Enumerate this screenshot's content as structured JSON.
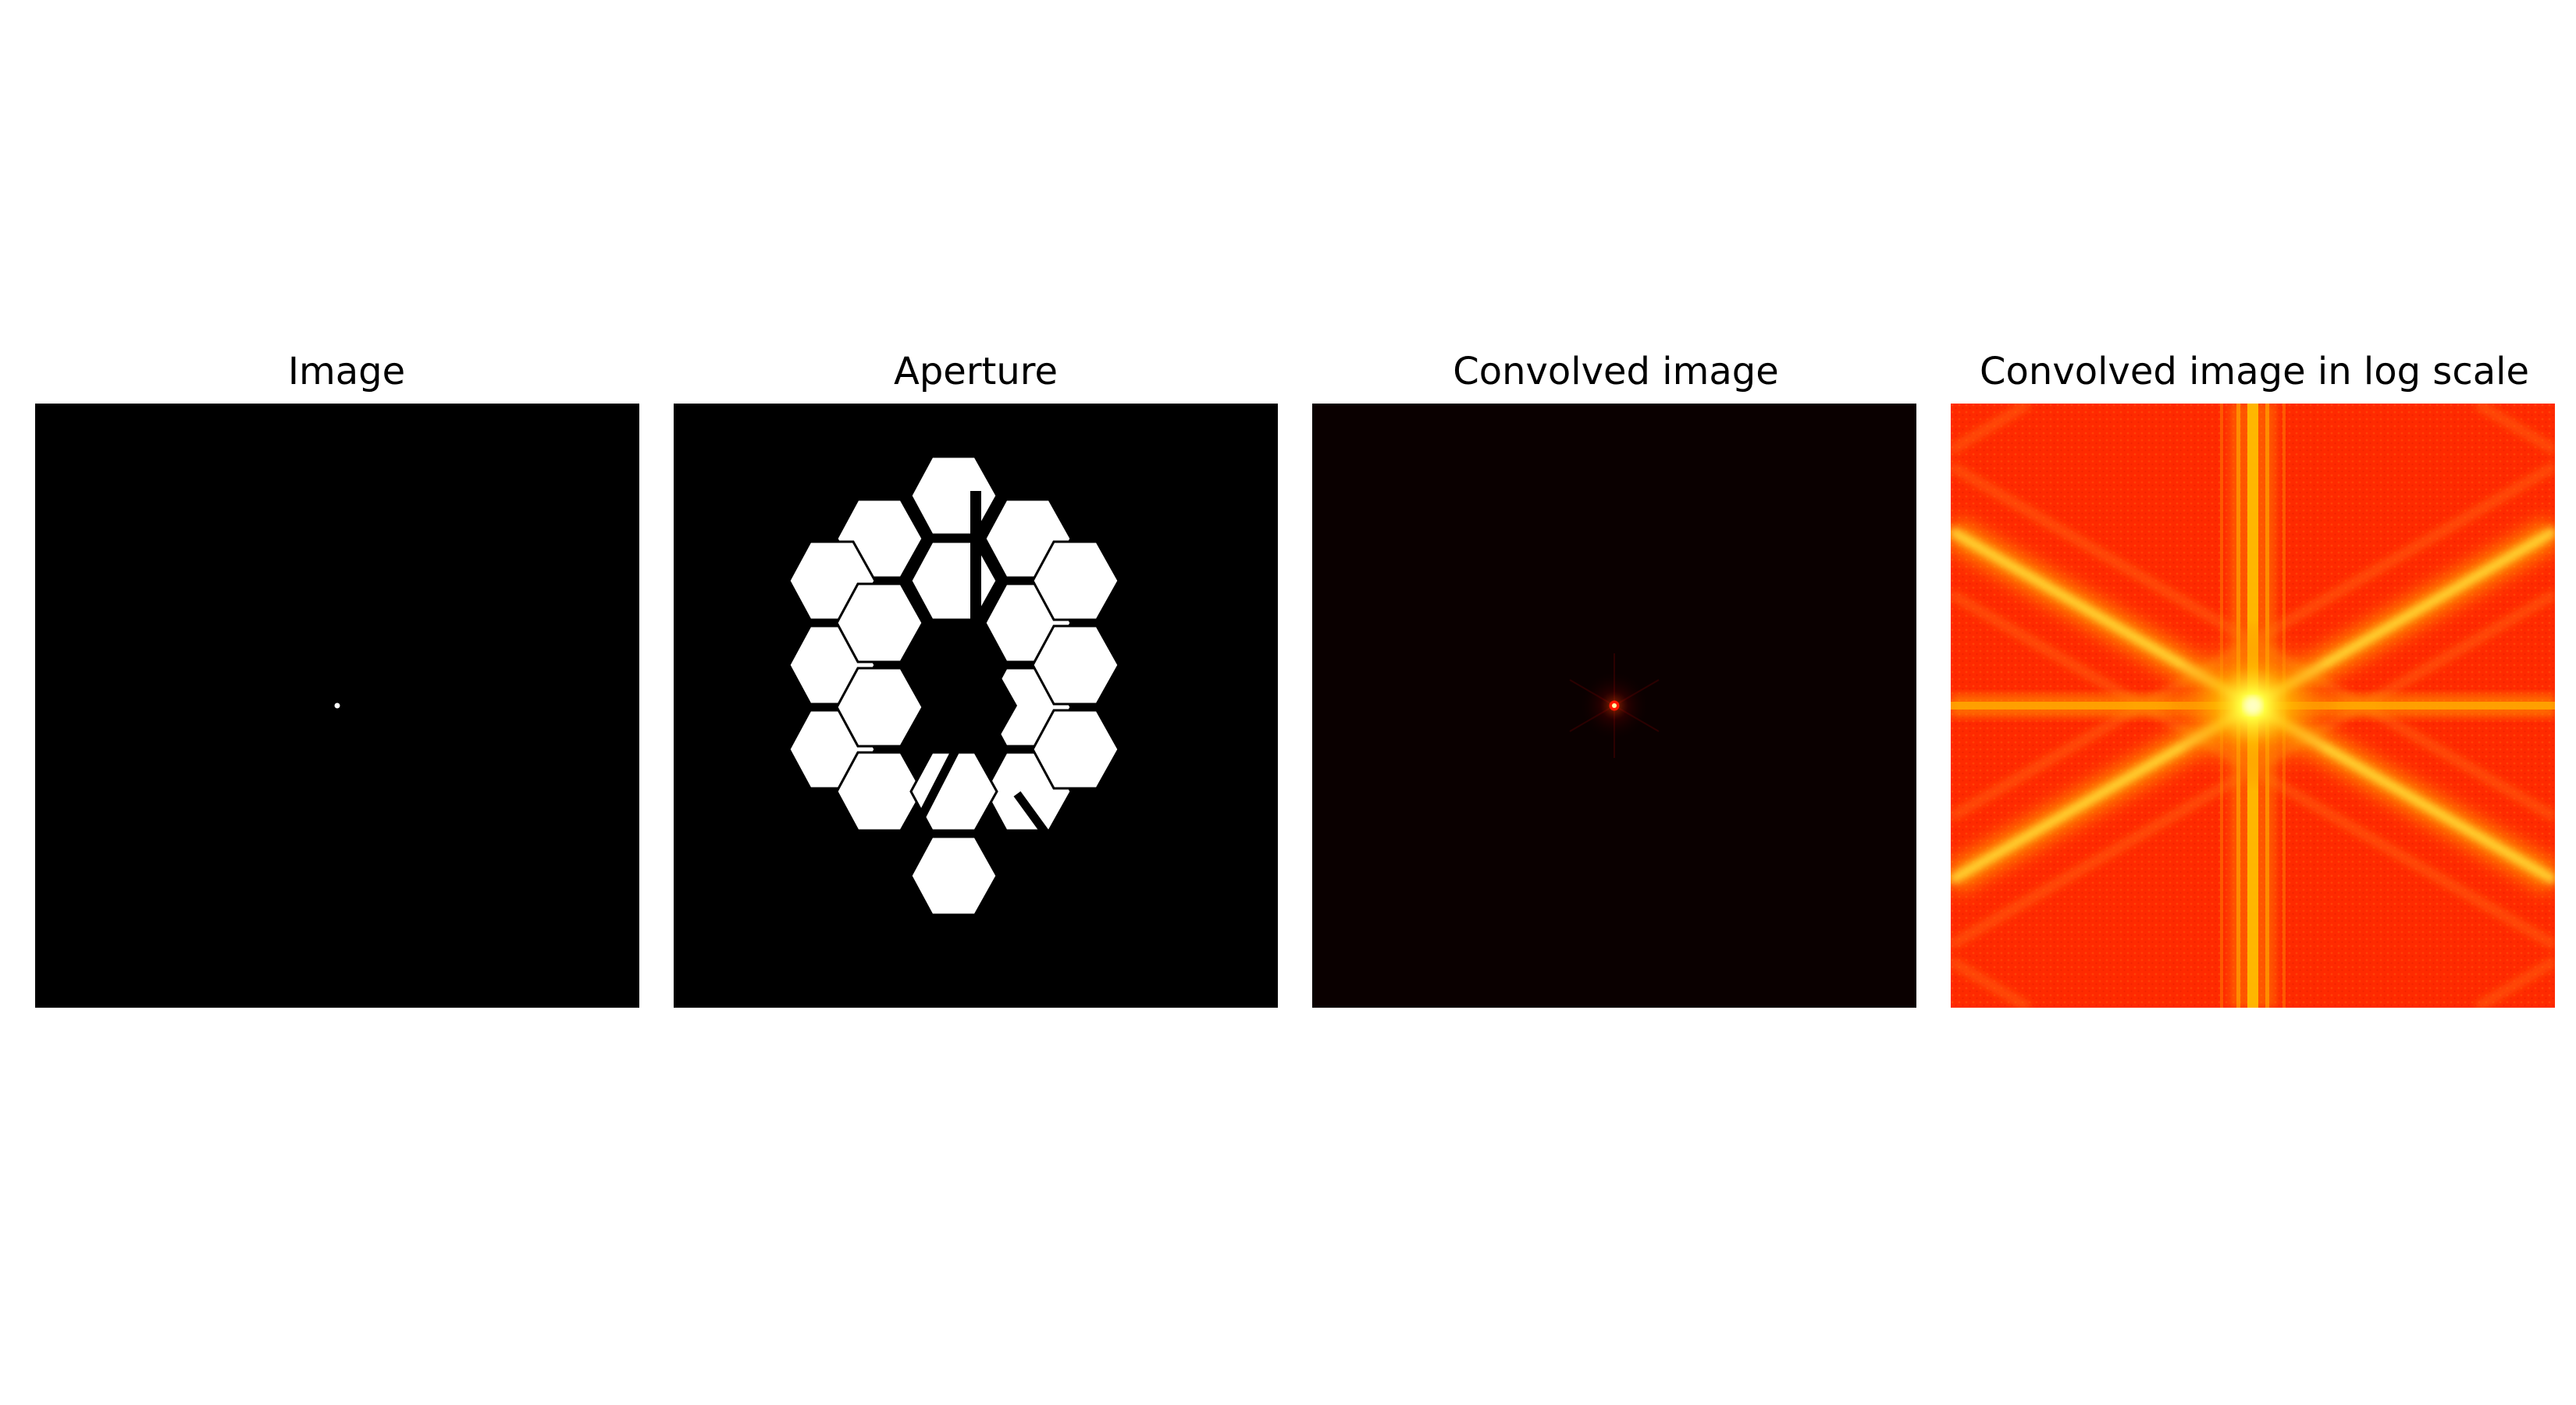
{
  "figure": {
    "panels": [
      {
        "title": "Image",
        "kind": "point-source",
        "background": "#000000",
        "foreground": "#ffffff"
      },
      {
        "title": "Aperture",
        "kind": "segmented-mirror-mask",
        "background": "#000000",
        "foreground": "#ffffff"
      },
      {
        "title": "Convolved image",
        "kind": "psf-linear",
        "colormap": "hot",
        "background": "#0a0000"
      },
      {
        "title": "Convolved image in log scale",
        "kind": "psf-log",
        "colormap": "hot",
        "background": "#ff2a00"
      }
    ]
  }
}
